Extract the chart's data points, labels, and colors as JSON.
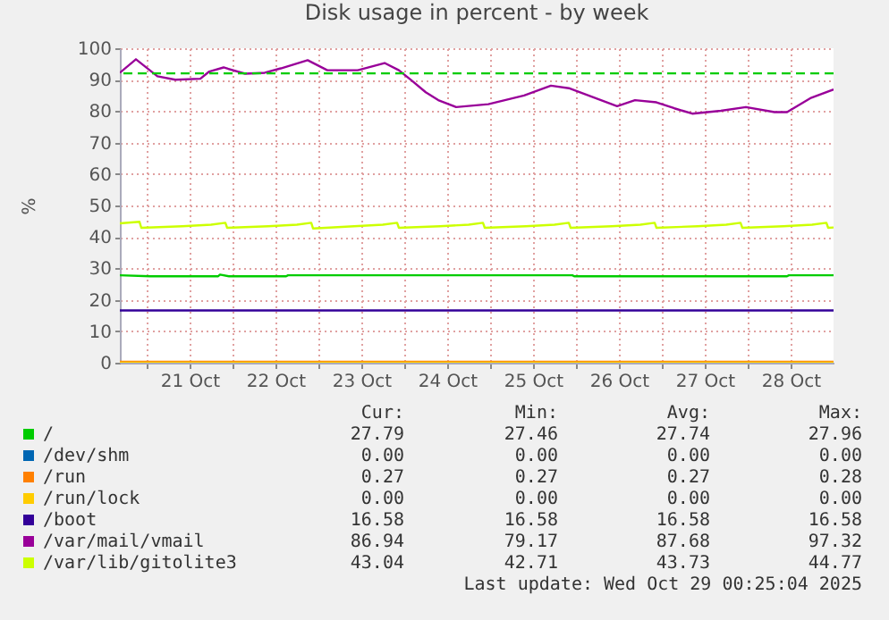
{
  "chart_data": {
    "type": "line",
    "title": "Disk usage in percent - by week",
    "ylabel": "%",
    "xlim": [
      "2025-10-20T16:30",
      "2025-10-29T00:00"
    ],
    "xticks": [
      {
        "value": "2025-10-21T00:00",
        "label": null
      },
      {
        "value": "2025-10-21T12:00",
        "label": "21 Oct"
      },
      {
        "value": "2025-10-22T00:00",
        "label": null
      },
      {
        "value": "2025-10-22T12:00",
        "label": "22 Oct"
      },
      {
        "value": "2025-10-23T00:00",
        "label": null
      },
      {
        "value": "2025-10-23T12:00",
        "label": "23 Oct"
      },
      {
        "value": "2025-10-24T00:00",
        "label": null
      },
      {
        "value": "2025-10-24T12:00",
        "label": "24 Oct"
      },
      {
        "value": "2025-10-25T00:00",
        "label": null
      },
      {
        "value": "2025-10-25T12:00",
        "label": "25 Oct"
      },
      {
        "value": "2025-10-26T00:00",
        "label": null
      },
      {
        "value": "2025-10-26T12:00",
        "label": "26 Oct"
      },
      {
        "value": "2025-10-27T00:00",
        "label": null
      },
      {
        "value": "2025-10-27T12:00",
        "label": "27 Oct"
      },
      {
        "value": "2025-10-28T00:00",
        "label": null
      },
      {
        "value": "2025-10-28T12:00",
        "label": "28 Oct"
      }
    ],
    "ylim": [
      0,
      100
    ],
    "yticks": [
      0,
      10,
      20,
      30,
      40,
      50,
      60,
      70,
      80,
      90,
      100
    ],
    "grid": true,
    "legend": "bottom",
    "ref_lines": [
      {
        "axis": "y",
        "value": 92,
        "label": null,
        "color": "#00cc00",
        "line_style": "dashed"
      }
    ],
    "series": [
      {
        "name": "/",
        "color": "#00cc00",
        "x": [
          "2025-10-20T16:30",
          "2025-10-21T01:00",
          "2025-10-21T20:00",
          "2025-10-21T20:30",
          "2025-10-21T23:00",
          "2025-10-22T15:00",
          "2025-10-22T15:30",
          "2025-10-25T23:00",
          "2025-10-25T23:30",
          "2025-10-28T11:00",
          "2025-10-28T11:30",
          "2025-10-29T00:00"
        ],
        "values": [
          27.8,
          27.5,
          27.5,
          28.0,
          27.5,
          27.5,
          27.8,
          27.8,
          27.5,
          27.5,
          27.8,
          27.8
        ]
      },
      {
        "name": "/dev/shm",
        "color": "#0066b3",
        "values": [
          null,
          null
        ]
      },
      {
        "name": "/run",
        "color": "#ff8000",
        "x": [
          "2025-10-20T16:30",
          "2025-10-29T00:00"
        ],
        "values": [
          0.3,
          0.3
        ]
      },
      {
        "name": "/run/lock",
        "color": "#ffcc00",
        "x": [
          "2025-10-20T16:30",
          "2025-10-29T00:00"
        ],
        "values": [
          0.0,
          0.0
        ]
      },
      {
        "name": "/boot",
        "color": "#330099",
        "x": [
          "2025-10-20T16:30",
          "2025-10-29T00:00"
        ],
        "values": [
          16.6,
          16.6
        ]
      },
      {
        "name": "/var/mail/vmail",
        "color": "#990099",
        "x": [
          "2025-10-20T16:30",
          "2025-10-20T21:00",
          "2025-10-21T03:00",
          "2025-10-21T08:00",
          "2025-10-21T15:00",
          "2025-10-21T17:30",
          "2025-10-21T21:30",
          "2025-10-22T03:30",
          "2025-10-22T09:00",
          "2025-10-22T13:30",
          "2025-10-22T21:00",
          "2025-10-23T02:30",
          "2025-10-23T11:00",
          "2025-10-23T18:30",
          "2025-10-23T22:30",
          "2025-10-24T02:00",
          "2025-10-24T06:00",
          "2025-10-24T09:30",
          "2025-10-24T14:30",
          "2025-10-24T23:30",
          "2025-10-25T09:30",
          "2025-10-25T17:00",
          "2025-10-25T22:00",
          "2025-10-26T05:30",
          "2025-10-26T11:30",
          "2025-10-26T16:30",
          "2025-10-26T22:30",
          "2025-10-27T03:30",
          "2025-10-27T08:30",
          "2025-10-27T16:30",
          "2025-10-27T23:30",
          "2025-10-28T07:30",
          "2025-10-28T11:00",
          "2025-10-28T17:30",
          "2025-10-29T00:00"
        ],
        "values": [
          92.2,
          96.5,
          91.1,
          90.0,
          90.3,
          92.6,
          93.9,
          91.9,
          92.2,
          93.6,
          96.2,
          93.0,
          93.0,
          95.3,
          93.0,
          89.8,
          86.0,
          83.5,
          81.3,
          82.2,
          85.0,
          88.1,
          87.3,
          84.1,
          81.6,
          83.5,
          82.8,
          80.9,
          79.2,
          80.1,
          81.3,
          79.7,
          79.7,
          84.1,
          86.9
        ]
      },
      {
        "name": "/var/lib/gitolite3",
        "color": "#ccff00",
        "x": [
          "2025-10-20T16:30",
          "2025-10-20T22:00",
          "2025-10-20T22:30",
          "2025-10-21T10:00",
          "2025-10-21T18:00",
          "2025-10-21T22:00",
          "2025-10-21T22:30",
          "2025-10-22T10:00",
          "2025-10-22T18:00",
          "2025-10-22T22:00",
          "2025-10-22T22:30",
          "2025-10-23T10:00",
          "2025-10-23T18:00",
          "2025-10-23T22:00",
          "2025-10-23T22:30",
          "2025-10-24T10:00",
          "2025-10-24T18:00",
          "2025-10-24T22:00",
          "2025-10-24T22:30",
          "2025-10-25T10:00",
          "2025-10-25T18:00",
          "2025-10-25T22:00",
          "2025-10-25T22:30",
          "2025-10-26T10:00",
          "2025-10-26T18:00",
          "2025-10-26T22:00",
          "2025-10-26T22:30",
          "2025-10-27T10:00",
          "2025-10-27T18:00",
          "2025-10-27T22:00",
          "2025-10-27T22:30",
          "2025-10-28T10:00",
          "2025-10-28T18:00",
          "2025-10-28T22:00",
          "2025-10-28T22:30",
          "2025-10-29T00:00"
        ],
        "values": [
          44.3,
          44.8,
          42.9,
          43.4,
          43.9,
          44.5,
          42.9,
          43.4,
          43.9,
          44.5,
          42.7,
          43.4,
          43.9,
          44.5,
          42.9,
          43.4,
          43.9,
          44.5,
          42.9,
          43.4,
          43.9,
          44.5,
          42.9,
          43.4,
          43.9,
          44.5,
          42.9,
          43.4,
          43.9,
          44.5,
          42.9,
          43.4,
          43.9,
          44.5,
          42.9,
          43.0
        ]
      }
    ],
    "annotations": [
      "Cur:",
      "Min:",
      "Avg:",
      "Max:",
      "27.79",
      "27.46",
      "27.74",
      "27.96",
      "0.00",
      "0.00",
      "0.00",
      "0.00",
      "0.27",
      "0.27",
      "0.27",
      "0.28",
      "0.00",
      "0.00",
      "0.00",
      "0.00",
      "16.58",
      "16.58",
      "16.58",
      "16.58",
      "86.94",
      "79.17",
      "87.68",
      "97.32",
      "43.04",
      "42.71",
      "43.73",
      "44.77",
      "Last update: Wed Oct 29 00:25:04 2025"
    ]
  }
}
